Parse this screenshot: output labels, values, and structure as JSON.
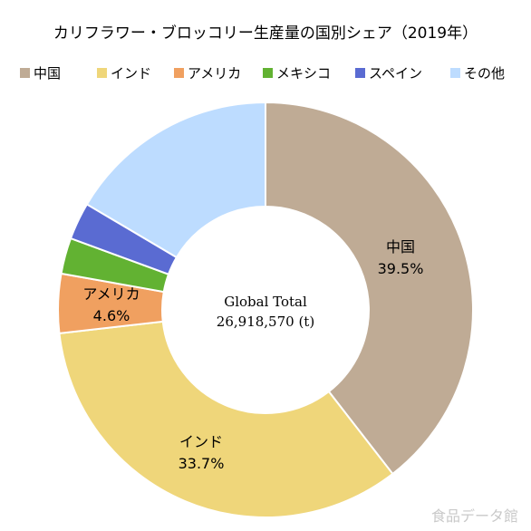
{
  "chart_data": {
    "type": "pie",
    "title": "カリフラワー・ブロッコリー生産量の国別シェア（2019年）",
    "center_label": [
      "Global Total",
      "26,918,570 (t)"
    ],
    "series": [
      {
        "name": "中国",
        "value": 39.5,
        "color": "#BFAB95",
        "label": "中国",
        "pct_label": "39.5%"
      },
      {
        "name": "インド",
        "value": 33.7,
        "color": "#EFD67A",
        "label": "インド",
        "pct_label": "33.7%"
      },
      {
        "name": "アメリカ",
        "value": 4.6,
        "color": "#F0A060",
        "label": "アメリカ",
        "pct_label": "4.6%"
      },
      {
        "name": "メキシコ",
        "value": 2.8,
        "color": "#62B232",
        "label": "",
        "pct_label": ""
      },
      {
        "name": "スペイン",
        "value": 2.9,
        "color": "#5A6BD2",
        "label": "",
        "pct_label": ""
      },
      {
        "name": "その他",
        "value": 16.5,
        "color": "#BDDCFF",
        "label": "",
        "pct_label": ""
      }
    ]
  },
  "watermark": "食品データ館"
}
